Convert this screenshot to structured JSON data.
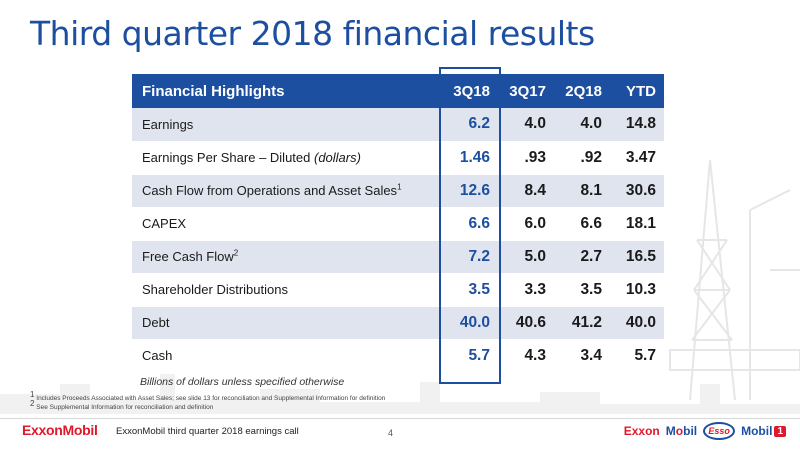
{
  "slide": {
    "title": "Third quarter 2018 financial results",
    "unit_note": "Billions of dollars unless specified otherwise",
    "footnote_1": "Includes Proceeds Associated with Asset Sales; see slide 13 for reconciliation and Supplemental Information for definition",
    "footnote_2": "See Supplemental Information for reconciliation and definition",
    "footer_text": "ExxonMobil third quarter 2018 earnings call",
    "page_number": "4",
    "logo_text": "ExxonMobil"
  },
  "brands": {
    "exxon": "Exxon",
    "mobil_prefix": "M",
    "mobil_o": "o",
    "mobil_suffix": "bil",
    "esso": "Esso",
    "mobil1_word": "Mobil",
    "mobil1_one": "1"
  },
  "table": {
    "headers": [
      "Financial Highlights",
      "3Q18",
      "3Q17",
      "2Q18",
      "YTD"
    ],
    "rows": [
      {
        "label": "Earnings",
        "sup": "",
        "italic": "",
        "values": [
          "6.2",
          "4.0",
          "4.0",
          "14.8"
        ]
      },
      {
        "label": "Earnings Per Share – Diluted ",
        "sup": "",
        "italic": "(dollars)",
        "values": [
          "1.46",
          ".93",
          ".92",
          "3.47"
        ]
      },
      {
        "label": "Cash Flow from Operations and Asset Sales",
        "sup": "1",
        "italic": "",
        "values": [
          "12.6",
          "8.4",
          "8.1",
          "30.6"
        ]
      },
      {
        "label": "CAPEX",
        "sup": "",
        "italic": "",
        "values": [
          "6.6",
          "6.0",
          "6.6",
          "18.1"
        ]
      },
      {
        "label": "Free Cash Flow",
        "sup": "2",
        "italic": "",
        "values": [
          "7.2",
          "5.0",
          "2.7",
          "16.5"
        ]
      },
      {
        "label": "Shareholder Distributions",
        "sup": "",
        "italic": "",
        "values": [
          "3.5",
          "3.3",
          "3.5",
          "10.3"
        ]
      },
      {
        "label": "Debt",
        "sup": "",
        "italic": "",
        "values": [
          "40.0",
          "40.6",
          "41.2",
          "40.0"
        ]
      },
      {
        "label": "Cash",
        "sup": "",
        "italic": "",
        "values": [
          "5.7",
          "4.3",
          "3.4",
          "5.7"
        ]
      }
    ]
  },
  "colors": {
    "accent": "#1d4fa0",
    "row_shade": "#dfe4ee",
    "brand_red": "#e0182b"
  }
}
